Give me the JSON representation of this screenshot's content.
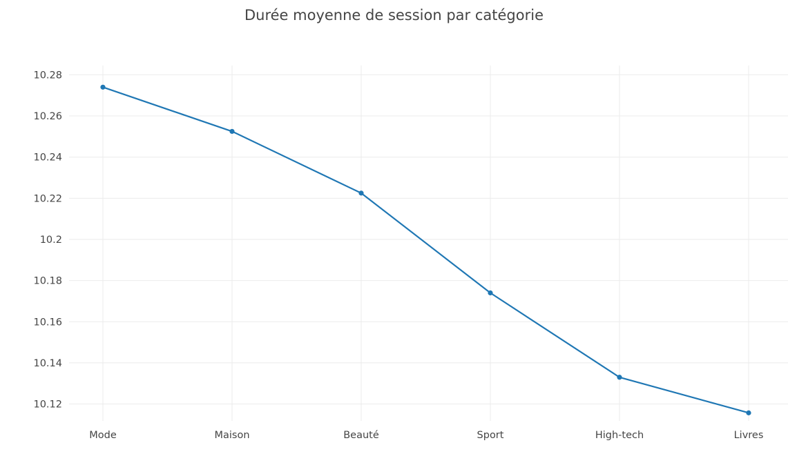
{
  "chart_data": {
    "type": "line",
    "title": "Durée moyenne de session par catégorie",
    "xlabel": "",
    "ylabel": "",
    "categories": [
      "Mode",
      "Maison",
      "Beauté",
      "Sport",
      "High-tech",
      "Livres"
    ],
    "series": [
      {
        "values": [
          10.274,
          10.2525,
          10.2225,
          10.174,
          10.133,
          10.1157
        ],
        "color": "#1f77b4"
      }
    ],
    "y_ticks": [
      10.12,
      10.14,
      10.16,
      10.18,
      10.2,
      10.22,
      10.24,
      10.26,
      10.28
    ],
    "y_tick_labels": [
      "10.12",
      "10.14",
      "10.16",
      "10.18",
      "10.2",
      "10.22",
      "10.24",
      "10.26",
      "10.28"
    ],
    "ylim": [
      10.1118,
      10.2845
    ],
    "grid": true,
    "legend": "none",
    "markers": true
  }
}
